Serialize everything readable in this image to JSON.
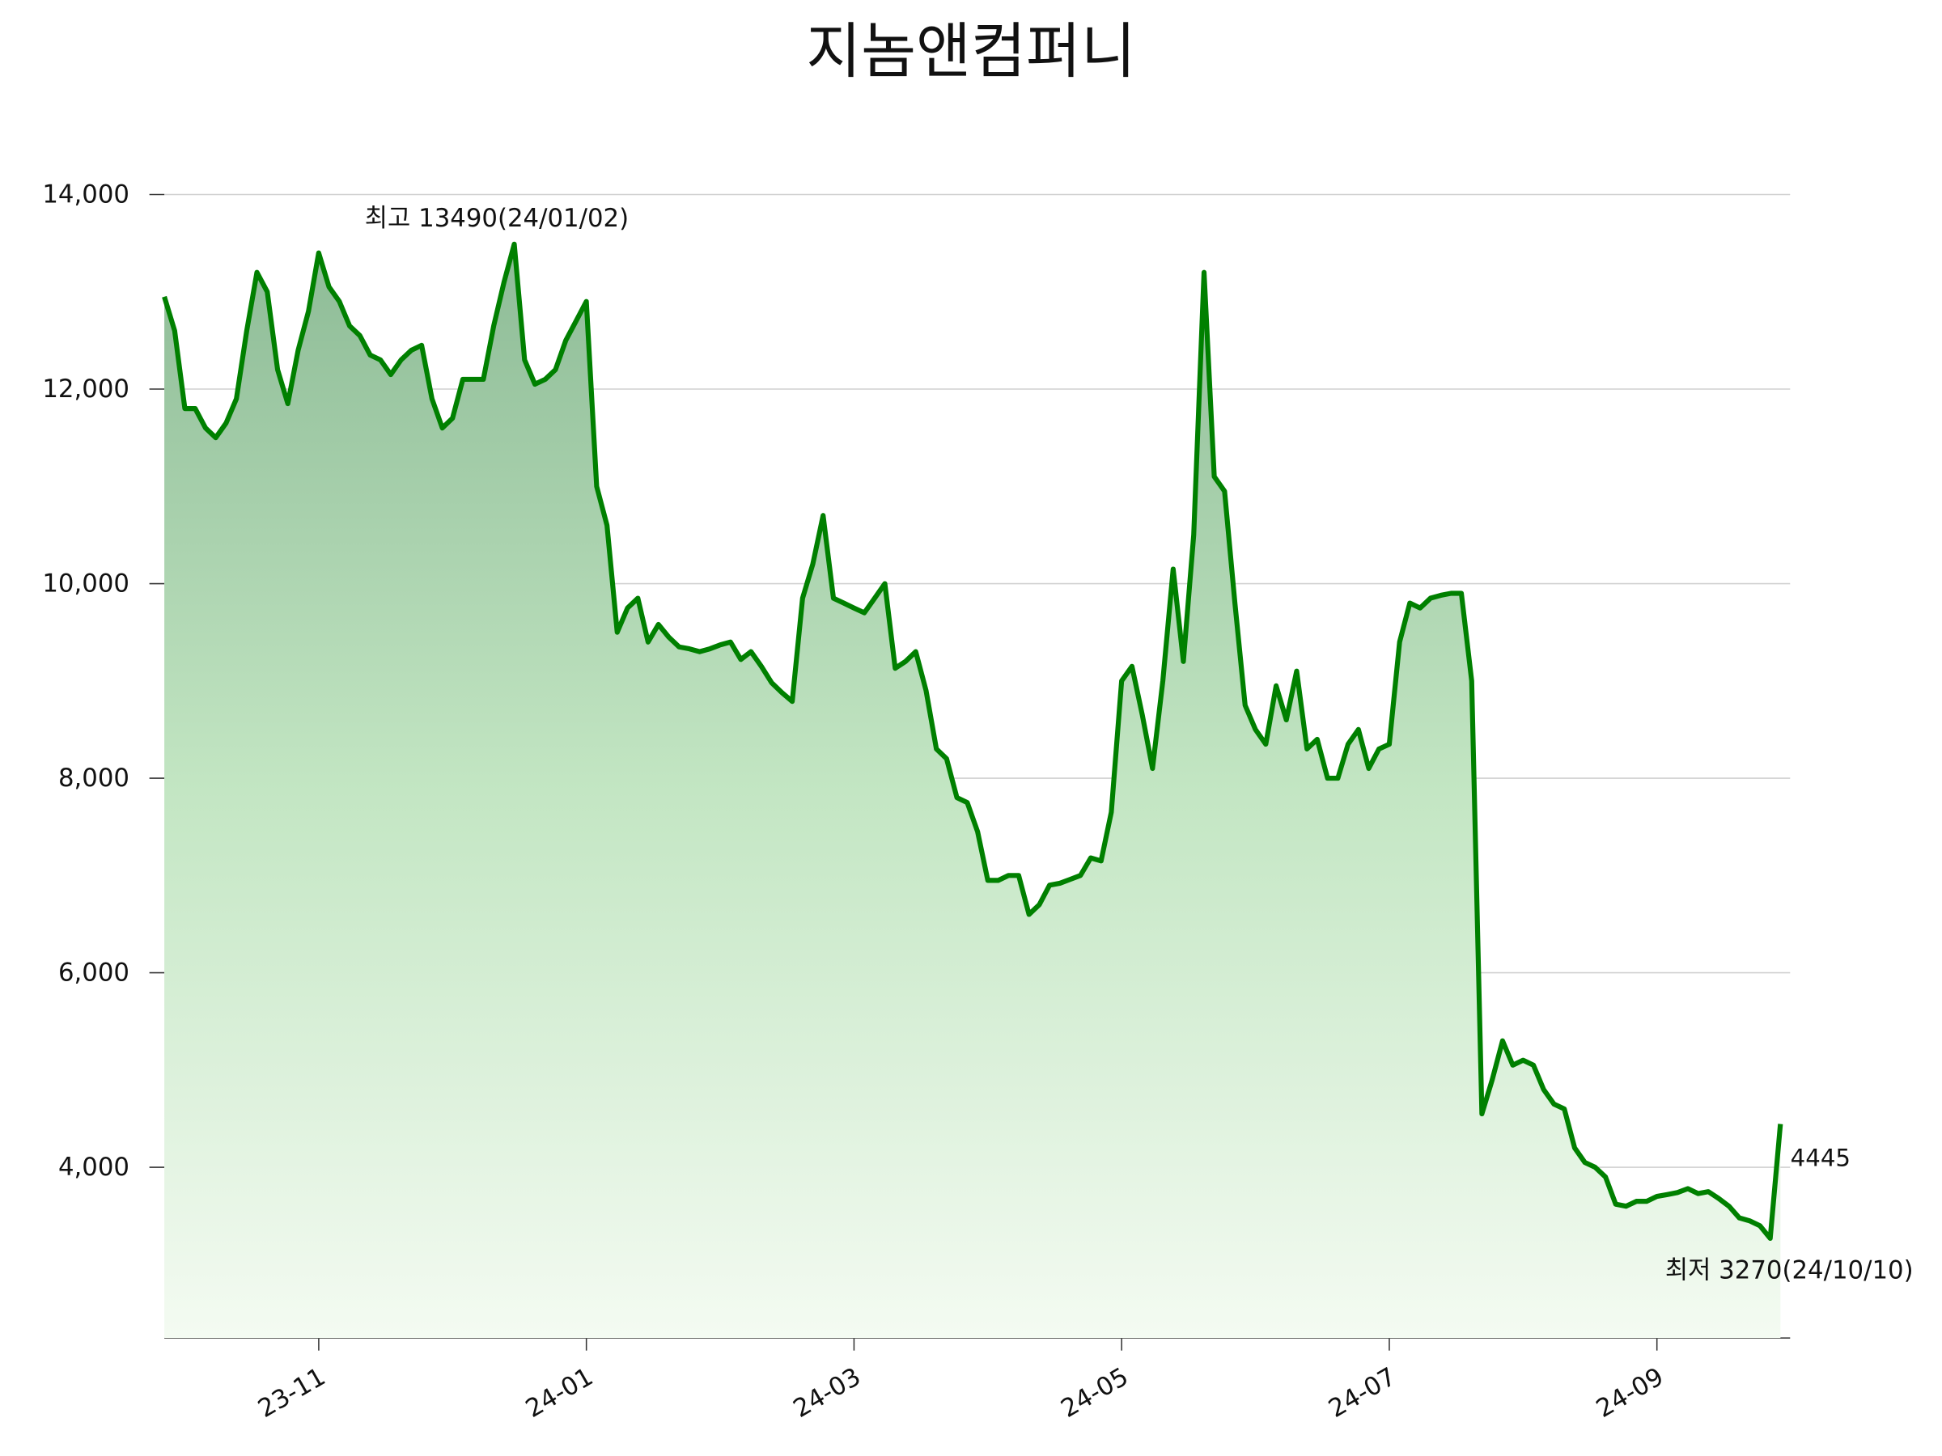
{
  "chart_data": {
    "type": "line",
    "title": "지놈앤컴퍼니",
    "categories": [
      null,
      null,
      null,
      null,
      null,
      null,
      null,
      null,
      null,
      null,
      null,
      null,
      null,
      null,
      null,
      "23-11",
      null,
      null,
      null,
      null,
      null,
      null,
      null,
      null,
      null,
      null,
      null,
      null,
      null,
      null,
      null,
      null,
      null,
      null,
      null,
      null,
      null,
      null,
      null,
      null,
      null,
      "24-01",
      null,
      null,
      null,
      null,
      null,
      null,
      null,
      null,
      null,
      null,
      null,
      null,
      null,
      null,
      null,
      null,
      null,
      null,
      null,
      null,
      null,
      null,
      null,
      null,
      null,
      "24-03",
      null,
      null,
      null,
      null,
      null,
      null,
      null,
      null,
      null,
      null,
      null,
      null,
      null,
      null,
      null,
      null,
      null,
      null,
      null,
      null,
      null,
      null,
      null,
      null,
      null,
      "24-05",
      null,
      null,
      null,
      null,
      null,
      null,
      null,
      null,
      null,
      null,
      null,
      null,
      null,
      null,
      null,
      null,
      null,
      null,
      null,
      null,
      null,
      null,
      null,
      null,
      null,
      "24-07",
      null,
      null,
      null,
      null,
      null,
      null,
      null,
      null,
      null,
      null,
      null,
      null,
      null,
      null,
      null,
      null,
      null,
      null,
      null,
      null,
      null,
      null,
      null,
      null,
      null,
      "24-09",
      null,
      null,
      null,
      null,
      null,
      null,
      null,
      null,
      null,
      null,
      null,
      null
    ],
    "series": [
      {
        "color": "#008000",
        "values": [
          12950,
          12600,
          11800,
          11800,
          11600,
          11500,
          11650,
          11900,
          12600,
          13200,
          13000,
          12200,
          11850,
          12400,
          12800,
          13400,
          13050,
          12900,
          12650,
          12550,
          12350,
          12300,
          12150,
          12300,
          12400,
          12450,
          11900,
          11600,
          11700,
          12100,
          12100,
          12100,
          12650,
          13100,
          13490,
          12300,
          12050,
          12100,
          12200,
          12500,
          12700,
          12900,
          11000,
          10600,
          9500,
          9750,
          9850,
          9400,
          9580,
          9450,
          9350,
          9330,
          9300,
          9330,
          9370,
          9400,
          9220,
          9300,
          9150,
          8980,
          8880,
          8790,
          9850,
          10200,
          10700,
          9850,
          9800,
          9750,
          9700,
          9850,
          10000,
          9130,
          9200,
          9300,
          8900,
          8300,
          8200,
          7800,
          7750,
          7450,
          6950,
          6950,
          7000,
          7000,
          6600,
          6700,
          6900,
          6920,
          6960,
          7000,
          7180,
          7150,
          7650,
          9000,
          9150,
          8650,
          8100,
          9000,
          10150,
          9200,
          10500,
          13200,
          11100,
          10950,
          9800,
          8750,
          8500,
          8350,
          8950,
          8600,
          9100,
          8300,
          8400,
          8000,
          8000,
          8350,
          8500,
          8100,
          8300,
          8350,
          9400,
          9800,
          9750,
          9850,
          9880,
          9900,
          9900,
          9000,
          4550,
          4900,
          5300,
          5050,
          5100,
          5050,
          4800,
          4650,
          4600,
          4200,
          4050,
          4000,
          3900,
          3620,
          3600,
          3650,
          3650,
          3700,
          3720,
          3740,
          3780,
          3730,
          3750,
          3680,
          3600,
          3480,
          3450,
          3400,
          3270,
          4445
        ]
      }
    ],
    "ylim": [
      2245,
      14600
    ],
    "yticks": [
      {
        "value": 4000,
        "label": "4,000"
      },
      {
        "value": 6000,
        "label": "6,000"
      },
      {
        "value": 8000,
        "label": "8,000"
      },
      {
        "value": 10000,
        "label": "10,000"
      },
      {
        "value": 12000,
        "label": "12,000"
      },
      {
        "value": 14000,
        "label": "14,000"
      }
    ],
    "grid": true,
    "annotations": [
      {
        "text": "최고 13490(24/01/02)",
        "color": "#ff0000"
      },
      {
        "text": "최저 3270(24/10/10)",
        "color": "#0000ff"
      }
    ]
  }
}
